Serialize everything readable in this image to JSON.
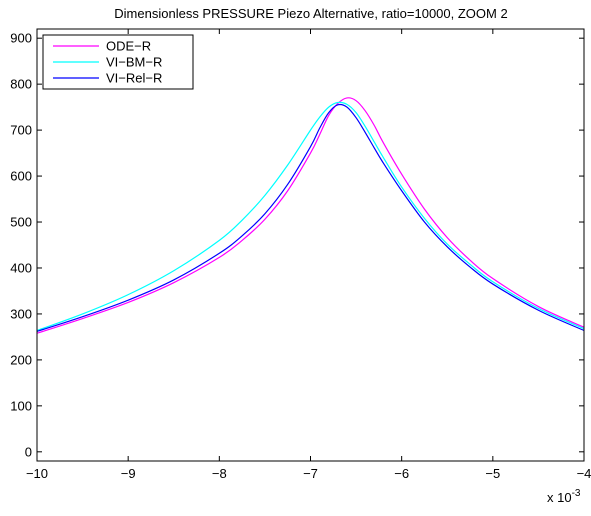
{
  "chart_data": {
    "type": "line",
    "title": "Dimensionless PRESSURE Piezo Alternative, ratio=10000, ZOOM 2",
    "xlabel": "",
    "ylabel": "",
    "x_multiplier": "x 10",
    "x_multiplier_exponent": "-3",
    "xlim": [
      -10,
      -4
    ],
    "ylim": [
      -20,
      920
    ],
    "xticks": [
      -10,
      -9,
      -8,
      -7,
      -6,
      -5,
      -4
    ],
    "xtick_labels": [
      "−10",
      "−9",
      "−8",
      "−7",
      "−6",
      "−5",
      "−4"
    ],
    "yticks": [
      0,
      100,
      200,
      300,
      400,
      500,
      600,
      700,
      800,
      900
    ],
    "ytick_labels": [
      "0",
      "100",
      "200",
      "300",
      "400",
      "500",
      "600",
      "700",
      "800",
      "900"
    ],
    "grid": false,
    "legend_placement": "top-left",
    "series": [
      {
        "name": "ODE−R",
        "color": "#ff00ff",
        "x": [
          -10,
          -9.5,
          -9,
          -8.5,
          -8,
          -7.75,
          -7.5,
          -7.25,
          -7,
          -6.9,
          -6.8,
          -6.7,
          -6.6,
          -6.5,
          -6.4,
          -6.3,
          -6.2,
          -6,
          -5.75,
          -5.5,
          -5.25,
          -5,
          -4.5,
          -4
        ],
        "y": [
          258,
          290,
          325,
          368,
          423,
          460,
          506,
          568,
          650,
          690,
          732,
          758,
          770,
          764,
          742,
          710,
          672,
          604,
          528,
          466,
          417,
          377,
          316,
          271
        ]
      },
      {
        "name": "VI−BM−R",
        "color": "#00ffff",
        "x": [
          -10,
          -9.5,
          -9,
          -8.5,
          -8,
          -7.75,
          -7.5,
          -7.25,
          -7,
          -6.9,
          -6.8,
          -6.7,
          -6.6,
          -6.5,
          -6.4,
          -6.3,
          -6.2,
          -6,
          -5.75,
          -5.5,
          -5.25,
          -5,
          -4.5,
          -4
        ],
        "y": [
          264,
          300,
          342,
          394,
          460,
          504,
          558,
          624,
          700,
          728,
          750,
          760,
          756,
          738,
          708,
          674,
          640,
          576,
          508,
          452,
          408,
          370,
          312,
          268
        ]
      },
      {
        "name": "VI−Rel−R",
        "color": "#0000ff",
        "x": [
          -10,
          -9.5,
          -9,
          -8.5,
          -8,
          -7.75,
          -7.5,
          -7.25,
          -7,
          -6.9,
          -6.8,
          -6.7,
          -6.6,
          -6.5,
          -6.4,
          -6.3,
          -6.2,
          -6,
          -5.75,
          -5.5,
          -5.25,
          -5,
          -4.5,
          -4
        ],
        "y": [
          262,
          294,
          330,
          374,
          432,
          470,
          518,
          582,
          664,
          704,
          738,
          755,
          750,
          727,
          695,
          661,
          628,
          568,
          500,
          446,
          402,
          365,
          308,
          264
        ]
      }
    ]
  }
}
